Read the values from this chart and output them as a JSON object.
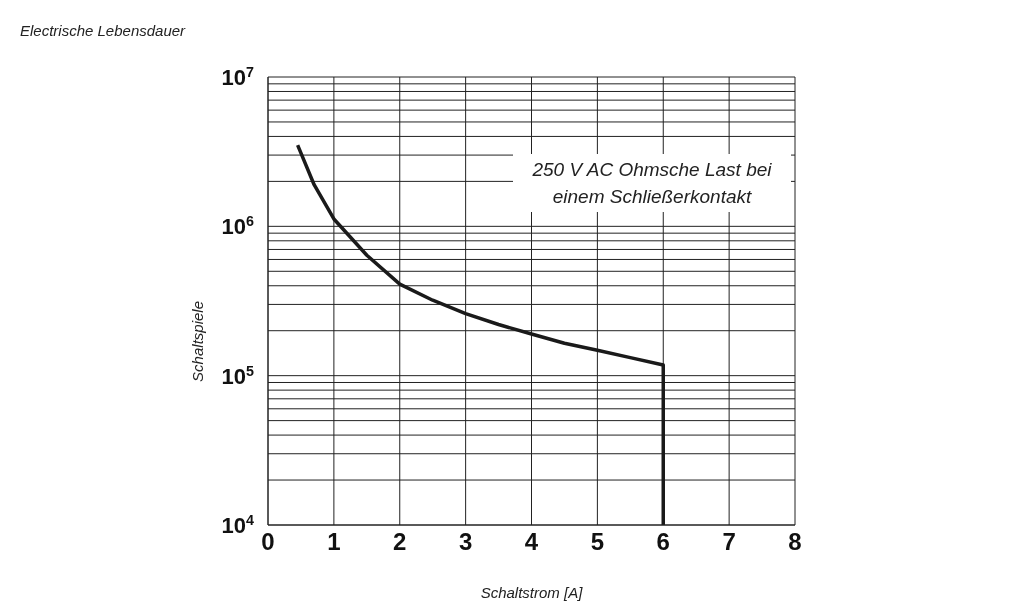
{
  "chart_data": {
    "type": "line",
    "title": "Electrische Lebensdauer",
    "xlabel": "Schaltstrom [A]",
    "ylabel": "Schaltspiele",
    "annotations": [
      "250 V AC Ohmsche Last bei einem Schließerkontakt"
    ],
    "x": [
      0.45,
      0.7,
      1,
      1.5,
      2,
      2.5,
      3,
      3.5,
      4,
      4.5,
      5,
      5.5,
      6,
      6
    ],
    "series": [
      {
        "color": "#1a1a1a",
        "values": [
          3500000,
          1900000,
          1120000,
          640000,
          410000,
          320000,
          260000,
          220000,
          190000,
          165000,
          148000,
          132000,
          118000,
          10000
        ]
      }
    ],
    "xlim": [
      0,
      8
    ],
    "xticks": [
      0,
      1,
      2,
      3,
      4,
      5,
      6,
      7,
      8
    ],
    "ylim": [
      10000,
      10000000
    ],
    "log": "y",
    "yticks": [
      {
        "value": 10000,
        "label": "10$^{4}$"
      },
      {
        "value": 20000,
        "label": null
      },
      {
        "value": 30000,
        "label": null
      },
      {
        "value": 40000,
        "label": null
      },
      {
        "value": 50000,
        "label": null
      },
      {
        "value": 60000,
        "label": null
      },
      {
        "value": 70000,
        "label": null
      },
      {
        "value": 80000,
        "label": null
      },
      {
        "value": 90000,
        "label": null
      },
      {
        "value": 100000,
        "label": "10$^{5}$"
      },
      {
        "value": 200000,
        "label": null
      },
      {
        "value": 300000,
        "label": null
      },
      {
        "value": 400000,
        "label": null
      },
      {
        "value": 500000,
        "label": null
      },
      {
        "value": 600000,
        "label": null
      },
      {
        "value": 700000,
        "label": null
      },
      {
        "value": 800000,
        "label": null
      },
      {
        "value": 900000,
        "label": null
      },
      {
        "value": 1000000,
        "label": "10$^{6}$"
      },
      {
        "value": 2000000,
        "label": null
      },
      {
        "value": 3000000,
        "label": null
      },
      {
        "value": 4000000,
        "label": null
      },
      {
        "value": 5000000,
        "label": null
      },
      {
        "value": 6000000,
        "label": null
      },
      {
        "value": 7000000,
        "label": null
      },
      {
        "value": 8000000,
        "label": null
      },
      {
        "value": 9000000,
        "label": null
      },
      {
        "value": 10000000,
        "label": "10$^{7}$"
      }
    ],
    "grid": true,
    "legend": false,
    "marker": "none",
    "line_style": "solid"
  }
}
